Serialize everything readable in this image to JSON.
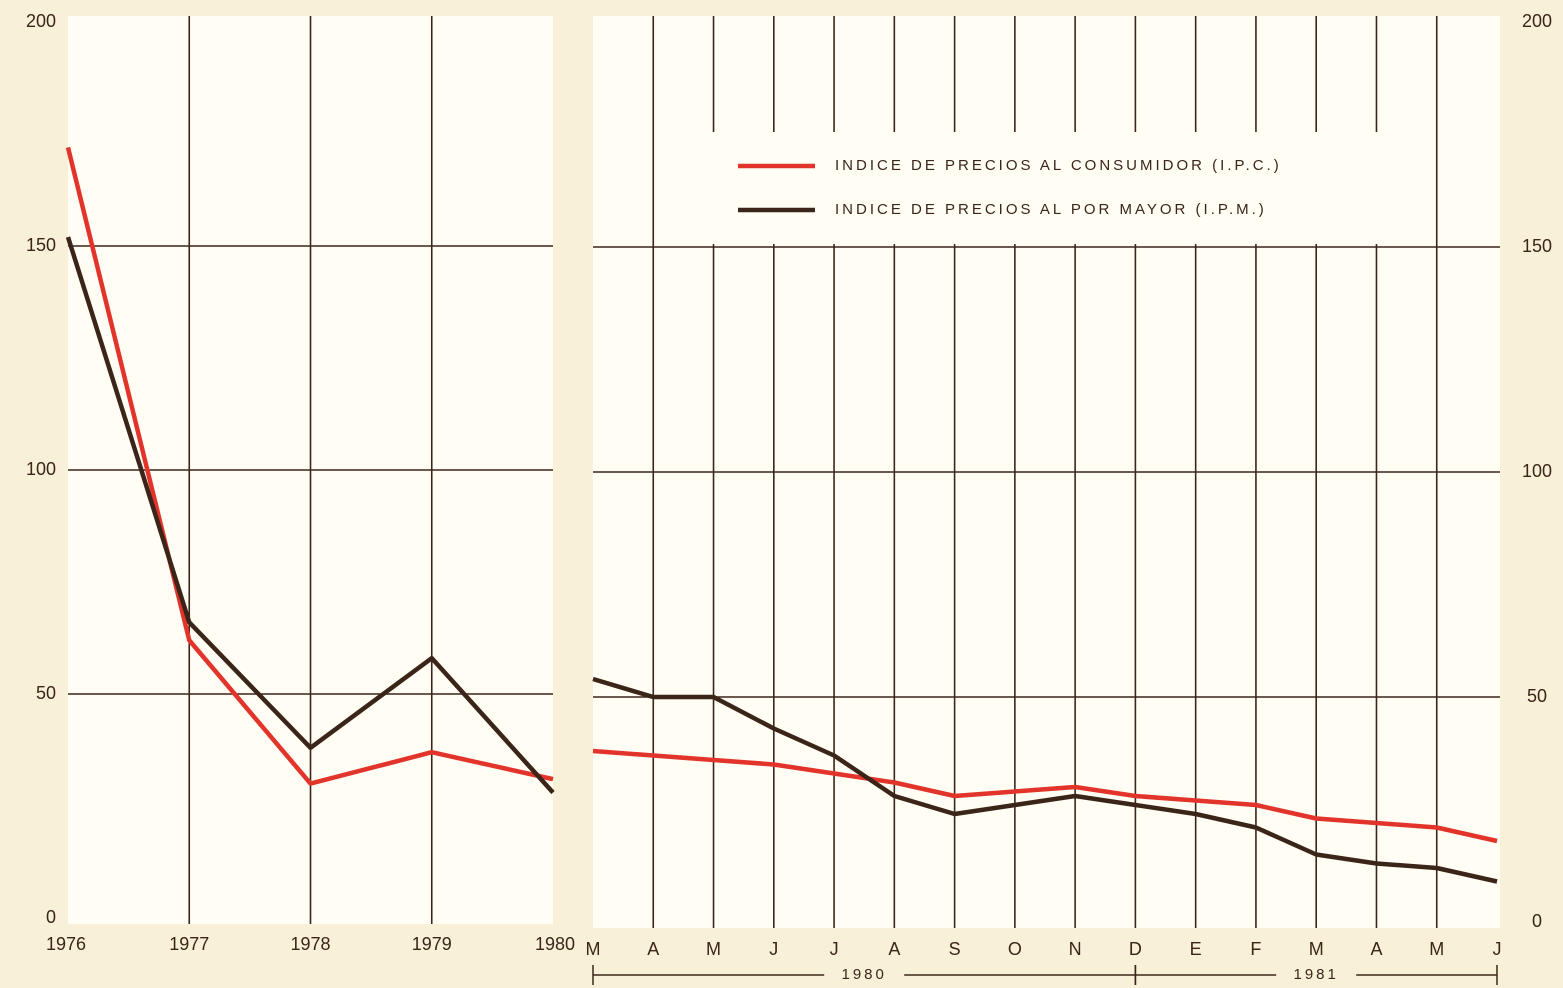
{
  "chart_data": [
    {
      "type": "line",
      "categories": [
        "1976",
        "1977",
        "1978",
        "1979",
        "1980"
      ],
      "series": [
        {
          "name": "INDICE DE PRECIOS AL CONSUMIDOR (I.P.C.)",
          "color": "#e2342b",
          "values": [
            172,
            62,
            30,
            37,
            31
          ]
        },
        {
          "name": "INDICE DE PRECIOS AL POR MAYOR (I.P.M.)",
          "color": "#3b2519",
          "values": [
            152,
            66,
            38,
            58,
            28
          ]
        }
      ],
      "ylim": [
        0,
        200
      ],
      "yticks": [
        0,
        50,
        100,
        150,
        200
      ],
      "grid": true,
      "y_axis_side": "left",
      "legend": false
    },
    {
      "type": "line",
      "categories": [
        "M",
        "A",
        "M",
        "J",
        "J",
        "A",
        "S",
        "O",
        "N",
        "D",
        "E",
        "F",
        "M",
        "A",
        "M",
        "J"
      ],
      "years": [
        "1980",
        "1981"
      ],
      "series": [
        {
          "name": "INDICE DE PRECIOS AL CONSUMIDOR (I.P.C.)",
          "color": "#e2342b",
          "values": [
            38,
            37,
            36,
            35,
            33,
            31,
            28,
            29,
            30,
            28,
            27,
            26,
            23,
            22,
            21,
            18
          ]
        },
        {
          "name": "INDICE DE PRECIOS AL POR MAYOR (I.P.M.)",
          "color": "#3b2519",
          "values": [
            54,
            50,
            50,
            43,
            37,
            28,
            24,
            26,
            28,
            26,
            24,
            21,
            15,
            13,
            12,
            9
          ]
        }
      ],
      "ylim": [
        0,
        200
      ],
      "yticks": [
        0,
        50,
        100,
        150,
        200
      ],
      "grid": true,
      "y_axis_side": "right",
      "legend": true
    }
  ]
}
